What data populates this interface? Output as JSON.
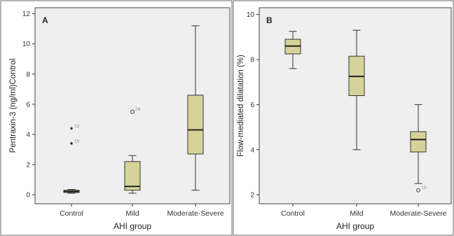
{
  "chart_data": [
    {
      "type": "box",
      "panel": "A",
      "categories": [
        "Control",
        "Mild",
        "Moderate-Severe"
      ],
      "xlabel": "AHI group",
      "ylabel": "Pentraxin-3 (ng/ml)Control",
      "ylim": [
        -0.6,
        12.4
      ],
      "yticks": [
        0,
        2,
        4,
        6,
        8,
        10,
        12
      ],
      "boxes": [
        {
          "category": "Control",
          "min": 0.1,
          "q1": 0.15,
          "median": 0.22,
          "q3": 0.3,
          "max": 0.35
        },
        {
          "category": "Mild",
          "min": 0.1,
          "q1": 0.3,
          "median": 0.55,
          "q3": 2.2,
          "max": 2.6
        },
        {
          "category": "Moderate-Severe",
          "min": 0.3,
          "q1": 2.7,
          "median": 4.3,
          "q3": 6.6,
          "max": 11.2
        }
      ],
      "outliers": [
        {
          "category": "Control",
          "value": 4.4,
          "label": "12",
          "marker": "star"
        },
        {
          "category": "Control",
          "value": 3.4,
          "label": "19",
          "marker": "star"
        },
        {
          "category": "Mild",
          "value": 5.5,
          "label": "28",
          "marker": "circle"
        }
      ]
    },
    {
      "type": "box",
      "panel": "B",
      "categories": [
        "Control",
        "Mild",
        "Moderate-Severe"
      ],
      "xlabel": "AHI group",
      "ylabel": "Flow-mediated dilatation (%)",
      "ylim": [
        1.6,
        10.3
      ],
      "yticks": [
        2,
        4,
        6,
        8,
        10
      ],
      "boxes": [
        {
          "category": "Control",
          "min": 7.6,
          "q1": 8.25,
          "median": 8.6,
          "q3": 8.9,
          "max": 9.25
        },
        {
          "category": "Mild",
          "min": 4.0,
          "q1": 6.4,
          "median": 7.25,
          "q3": 8.15,
          "max": 9.3
        },
        {
          "category": "Moderate-Severe",
          "min": 2.5,
          "q1": 3.9,
          "median": 4.45,
          "q3": 4.8,
          "max": 6.0
        }
      ],
      "outliers": [
        {
          "category": "Moderate-Severe",
          "value": 2.2,
          "label": "13",
          "marker": "circle"
        }
      ]
    }
  ],
  "colors": {
    "box_fill": "#d6d39a",
    "plot_background": "#efefef",
    "outlier": "#555555"
  }
}
